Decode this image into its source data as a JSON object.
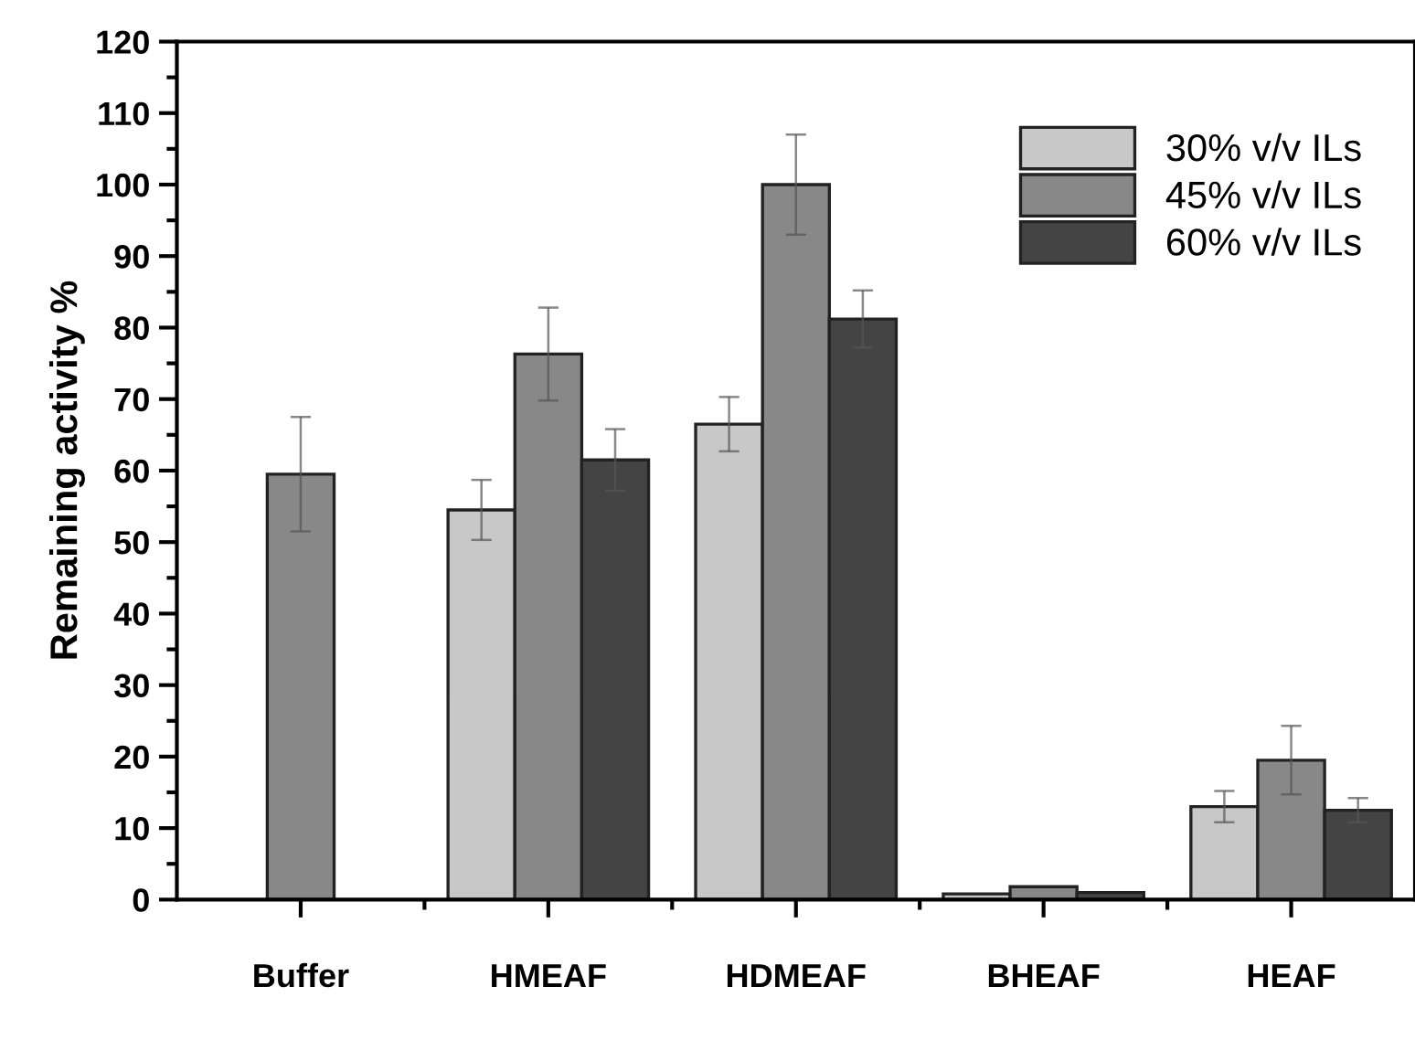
{
  "chart_data": {
    "type": "bar",
    "ylabel": "Remaining activity %",
    "categories": [
      "Buffer",
      "HMEAF",
      "HDMEAF",
      "BHEAF",
      "HEAF"
    ],
    "series": [
      {
        "name": "30% v/v ILs",
        "color": "#c8c8c8",
        "values": [
          null,
          54.5,
          66.5,
          0.8,
          13
        ],
        "errors": [
          null,
          4.2,
          3.8,
          null,
          2.2
        ]
      },
      {
        "name": "45% v/v ILs",
        "color": "#888888",
        "values": [
          59.5,
          76.3,
          100,
          1.8,
          19.5
        ],
        "errors": [
          8,
          6.5,
          7,
          null,
          4.8
        ]
      },
      {
        "name": "60% v/v ILs",
        "color": "#444444",
        "values": [
          null,
          61.5,
          81.2,
          1.0,
          12.5
        ],
        "errors": [
          null,
          4.3,
          4,
          null,
          1.7
        ]
      }
    ],
    "ylim": [
      0,
      120
    ],
    "yticks": [
      0,
      10,
      20,
      30,
      40,
      50,
      60,
      70,
      80,
      90,
      100,
      110,
      120
    ],
    "grid": false,
    "legend": "top right"
  }
}
